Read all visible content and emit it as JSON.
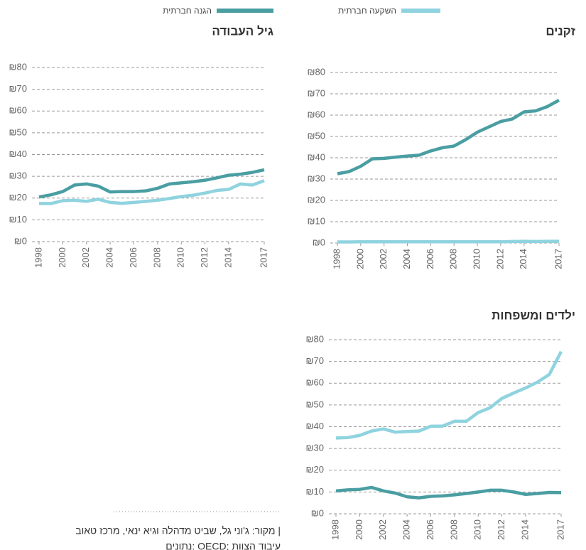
{
  "chart_data": [
    {
      "type": "line",
      "title": "זקנים",
      "x": [
        1998,
        1999,
        2000,
        2001,
        2002,
        2003,
        2004,
        2005,
        2006,
        2007,
        2008,
        2009,
        2010,
        2011,
        2012,
        2013,
        2014,
        2015,
        2016,
        2017
      ],
      "xlim": [
        1998,
        2017
      ],
      "xticks": [
        1998,
        2000,
        2002,
        2004,
        2006,
        2008,
        2010,
        2012,
        2014,
        2017
      ],
      "ylim": [
        0,
        80
      ],
      "yticks": [
        {
          "value": 0,
          "label": "₪0"
        },
        {
          "value": 10,
          "label": "₪10"
        },
        {
          "value": 20,
          "label": "₪20"
        },
        {
          "value": 30,
          "label": "₪30"
        },
        {
          "value": 40,
          "label": "₪40"
        },
        {
          "value": 50,
          "label": "₪50"
        },
        {
          "value": 60,
          "label": "₪60"
        },
        {
          "value": 70,
          "label": "₪70"
        },
        {
          "value": 80,
          "label": "₪80"
        }
      ],
      "grid": true,
      "series": [
        {
          "name": "הגנה חברתית",
          "color": "#4a9ea2",
          "values": [
            32.5,
            33.5,
            36,
            39.5,
            39.7,
            40.3,
            40.8,
            41.2,
            43.2,
            44.7,
            45.5,
            48.5,
            52,
            54.5,
            57,
            58.2,
            61.5,
            62,
            64,
            67
          ]
        },
        {
          "name": "השקעה חברתית",
          "color": "#8fd3df",
          "values": [
            0.5,
            0.5,
            0.6,
            0.6,
            0.6,
            0.6,
            0.6,
            0.6,
            0.6,
            0.6,
            0.6,
            0.6,
            0.6,
            0.6,
            0.6,
            0.7,
            0.8,
            0.7,
            0.8,
            0.8
          ]
        }
      ]
    },
    {
      "type": "line",
      "title": "גיל העבודה",
      "x": [
        1998,
        1999,
        2000,
        2001,
        2002,
        2003,
        2004,
        2005,
        2006,
        2007,
        2008,
        2009,
        2010,
        2011,
        2012,
        2013,
        2014,
        2015,
        2016,
        2017
      ],
      "xlim": [
        1998,
        2017
      ],
      "xticks": [
        1998,
        2000,
        2002,
        2004,
        2006,
        2008,
        2010,
        2012,
        2014,
        2017
      ],
      "ylim": [
        0,
        80
      ],
      "yticks": [
        {
          "value": 0,
          "label": "₪0"
        },
        {
          "value": 10,
          "label": "₪10"
        },
        {
          "value": 20,
          "label": "₪20"
        },
        {
          "value": 30,
          "label": "₪30"
        },
        {
          "value": 40,
          "label": "₪40"
        },
        {
          "value": 50,
          "label": "₪50"
        },
        {
          "value": 60,
          "label": "₪60"
        },
        {
          "value": 70,
          "label": "₪70"
        },
        {
          "value": 80,
          "label": "₪80"
        }
      ],
      "grid": true,
      "series": [
        {
          "name": "הגנה חברתית",
          "color": "#4a9ea2",
          "values": [
            20.5,
            21.5,
            23,
            26,
            26.5,
            25.5,
            22.8,
            23,
            23,
            23.3,
            24.5,
            26.5,
            27,
            27.5,
            28.2,
            29.3,
            30.5,
            31,
            31.8,
            33
          ]
        },
        {
          "name": "השקעה חברתית",
          "color": "#8fd3df",
          "values": [
            17.5,
            17.5,
            18.8,
            19,
            18.5,
            19.5,
            18,
            17.6,
            18,
            18.5,
            19,
            19.8,
            20.7,
            21.3,
            22.3,
            23.5,
            24,
            26.5,
            26,
            28
          ]
        }
      ]
    },
    {
      "type": "line",
      "title": "ילדים ומשפחות",
      "x": [
        1998,
        1999,
        2000,
        2001,
        2002,
        2003,
        2004,
        2005,
        2006,
        2007,
        2008,
        2009,
        2010,
        2011,
        2012,
        2013,
        2014,
        2015,
        2016,
        2017
      ],
      "xlim": [
        1998,
        2017
      ],
      "xticks": [
        1998,
        2000,
        2002,
        2004,
        2006,
        2008,
        2010,
        2012,
        2014,
        2017
      ],
      "ylim": [
        0,
        80
      ],
      "yticks": [
        {
          "value": 0,
          "label": "₪0"
        },
        {
          "value": 10,
          "label": "₪10"
        },
        {
          "value": 20,
          "label": "₪20"
        },
        {
          "value": 30,
          "label": "₪30"
        },
        {
          "value": 40,
          "label": "₪40"
        },
        {
          "value": 50,
          "label": "₪50"
        },
        {
          "value": 60,
          "label": "₪60"
        },
        {
          "value": 70,
          "label": "₪70"
        },
        {
          "value": 80,
          "label": "₪80"
        }
      ],
      "grid": true,
      "series": [
        {
          "name": "הגנה חברתית",
          "color": "#4a9ea2",
          "values": [
            10.5,
            11,
            11.2,
            12.1,
            10.5,
            9.5,
            7.8,
            7.3,
            8,
            8.2,
            8.7,
            9.3,
            10,
            10.8,
            10.8,
            10,
            8.9,
            9.3,
            9.8,
            9.7
          ]
        },
        {
          "name": "השקעה חברתית",
          "color": "#8fd3df",
          "values": [
            34.8,
            35,
            36,
            38,
            39,
            37.5,
            37.8,
            38,
            40.2,
            40.3,
            42.5,
            42.5,
            46.5,
            48.7,
            53,
            55.5,
            57.8,
            60.5,
            64,
            74.5
          ]
        }
      ]
    }
  ],
  "source": [
    "מקור: ג'וני גל, שביט מדהלה וגיא ינאי, מרכז טאוב |",
    "נתונים: OECD; עיבוד הצוות"
  ]
}
